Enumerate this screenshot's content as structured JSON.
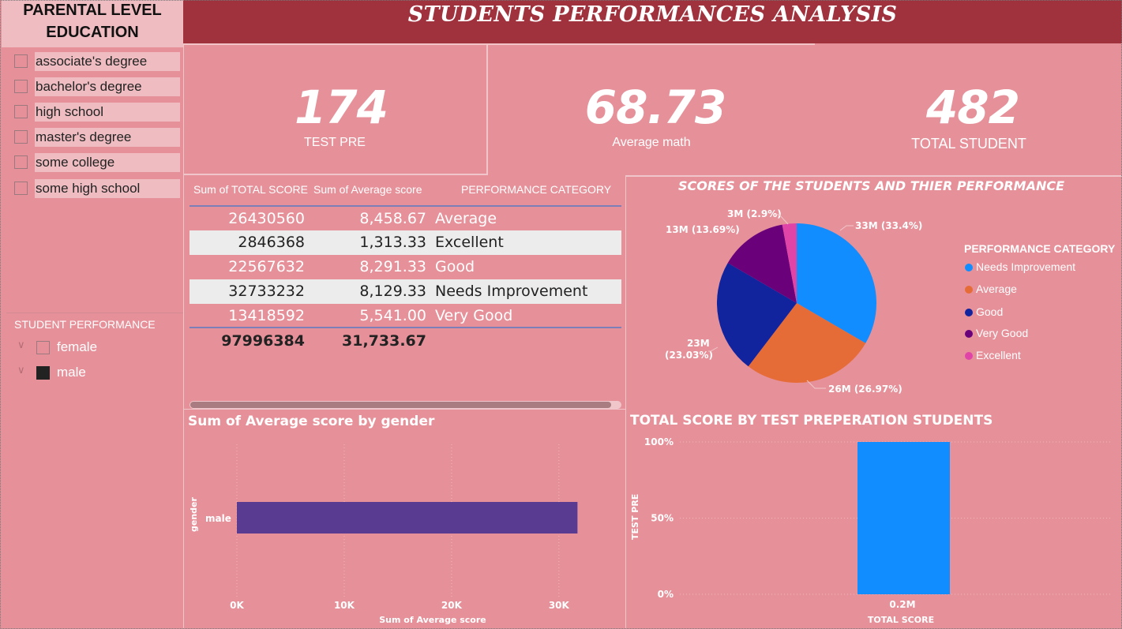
{
  "header": {
    "title": "STUDENTS PERFORMANCES ANALYSIS"
  },
  "slicer": {
    "title_line1": "PARENTAL LEVEL",
    "title_line2": "EDUCATION",
    "items": [
      {
        "label": "associate's degree"
      },
      {
        "label": "bachelor's degree"
      },
      {
        "label": "high school"
      },
      {
        "label": "master's degree"
      },
      {
        "label": "some college"
      },
      {
        "label": "some high school"
      }
    ]
  },
  "gender_slicer": {
    "title": "STUDENT PERFORMANCE",
    "items": [
      {
        "label": "female",
        "checked": false
      },
      {
        "label": "male",
        "checked": true
      }
    ]
  },
  "cards": {
    "test_pre": {
      "value": "174",
      "label": "TEST PRE"
    },
    "avg_math": {
      "value": "68.73",
      "label": "Average math"
    },
    "total_student": {
      "value": "482",
      "label": "TOTAL STUDENT"
    }
  },
  "table": {
    "headers": [
      "Sum of TOTAL SCORE",
      "Sum of Average score",
      "PERFORMANCE CATEGORY"
    ],
    "rows": [
      {
        "total": "26430560",
        "avg": "8,458.67",
        "category": "Average"
      },
      {
        "total": "2846368",
        "avg": "1,313.33",
        "category": "Excellent"
      },
      {
        "total": "22567632",
        "avg": "8,291.33",
        "category": "Good"
      },
      {
        "total": "32733232",
        "avg": "8,129.33",
        "category": "Needs Improvement"
      },
      {
        "total": "13418592",
        "avg": "5,541.00",
        "category": "Very Good"
      }
    ],
    "totals": {
      "total": "97996384",
      "avg": "31,733.67"
    }
  },
  "colors": {
    "background": "#e6919a",
    "title_bar": "#a0323e",
    "needs_improvement": "#118dff",
    "average": "#e66c37",
    "good": "#12239e",
    "very_good": "#6b007b",
    "excellent": "#e044a7",
    "gender_bar": "#5a3b92"
  },
  "chart_data": [
    {
      "type": "pie",
      "title": "SCORES OF THE STUDENTS AND THIER PERFORMANCE",
      "legend_title": "PERFORMANCE CATEGORY",
      "legend_position": "right",
      "slices": [
        {
          "name": "Needs Improvement",
          "value": 32733232,
          "label": "33M (33.4%)",
          "color": "#118dff"
        },
        {
          "name": "Average",
          "value": 26430560,
          "label": "26M (26.97%)",
          "color": "#e66c37"
        },
        {
          "name": "Good",
          "value": 22567632,
          "label_line1": "23M",
          "label_line2": "(23.03%)",
          "color": "#12239e"
        },
        {
          "name": "Very Good",
          "value": 13418592,
          "label": "13M (13.69%)",
          "color": "#6b007b"
        },
        {
          "name": "Excellent",
          "value": 2846368,
          "label": "3M (2.9%)",
          "color": "#e044a7"
        }
      ]
    },
    {
      "type": "bar",
      "orientation": "horizontal",
      "title": "Sum of Average score by gender",
      "categories": [
        "male"
      ],
      "values": [
        31733.67
      ],
      "xlabel": "Sum of Average score",
      "ylabel": "gender",
      "xlim": [
        0,
        32000
      ],
      "xticks": [
        "0K",
        "10K",
        "20K",
        "30K"
      ],
      "color": "#5a3b92"
    },
    {
      "type": "bar",
      "title": "TOTAL SCORE BY TEST PREPERATION STUDENTS",
      "categories": [
        "0.2M"
      ],
      "values": [
        1.0
      ],
      "xlabel": "TOTAL SCORE",
      "ylabel": "TEST PRE",
      "yticks": [
        "100%",
        "50%",
        "0%"
      ],
      "color": "#118dff"
    }
  ]
}
